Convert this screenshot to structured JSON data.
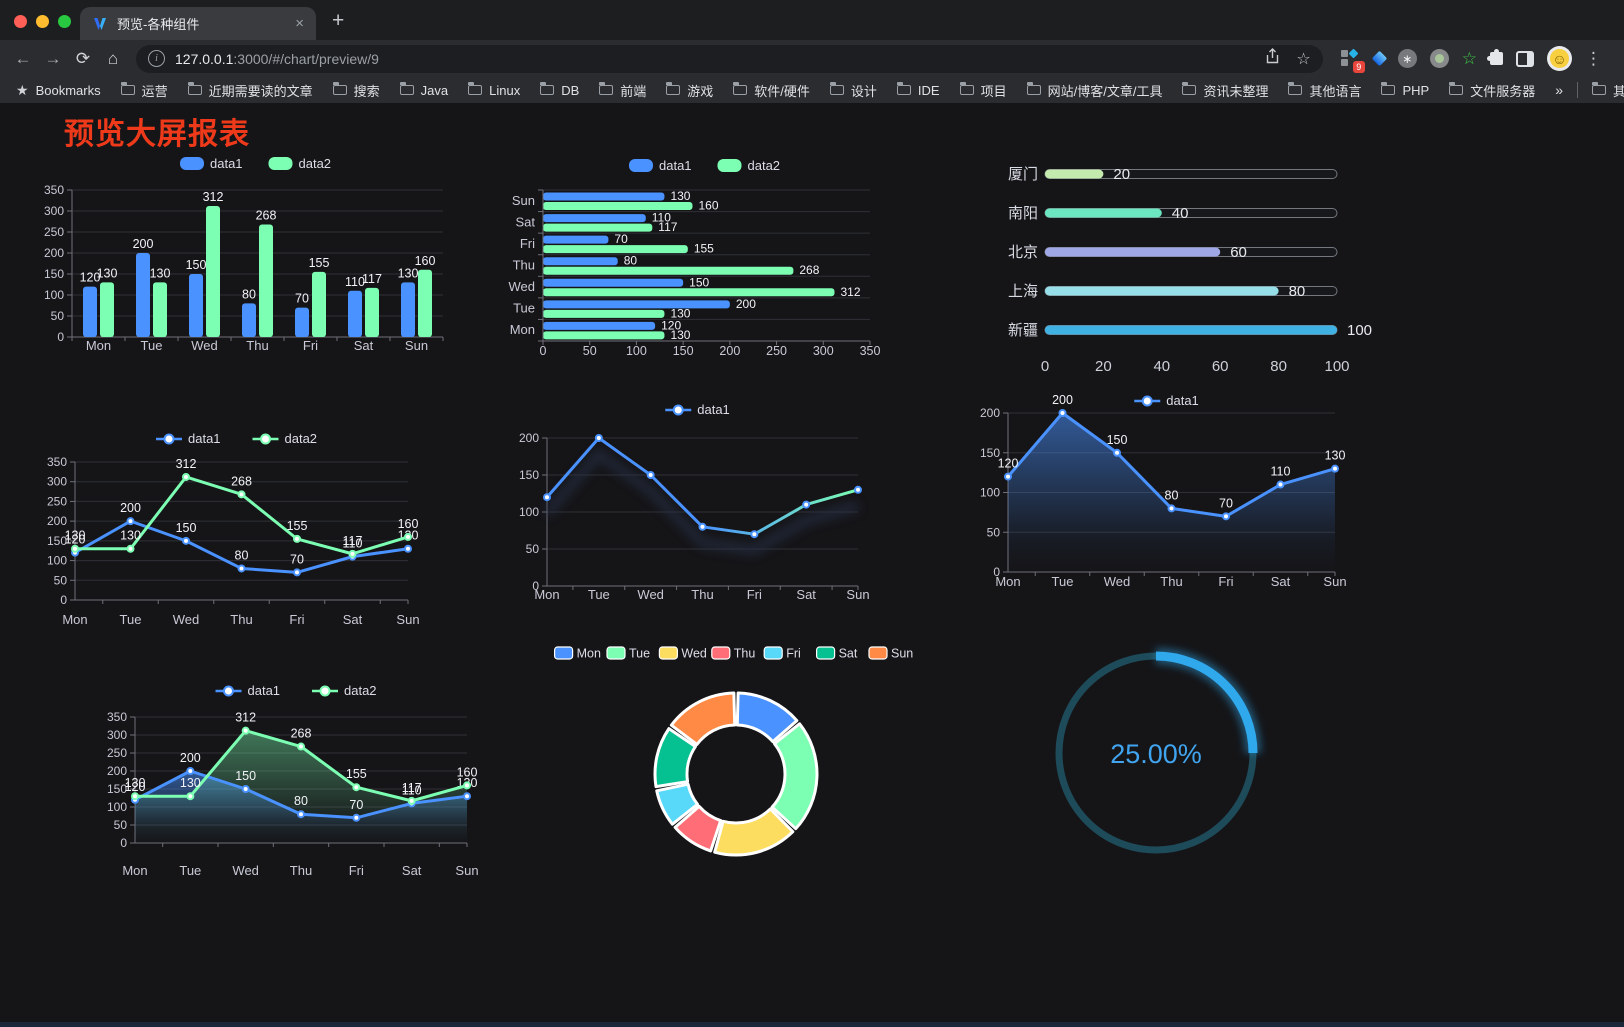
{
  "browser": {
    "tab_title": "预览-各种组件",
    "new_tab_label": "+",
    "close_tab_label": "×",
    "url_host": "127.0.0.1",
    "url_rest": ":3000/#/chart/preview/9",
    "bookmarks_label": "Bookmarks",
    "bookmarks": [
      "运营",
      "近期需要读的文章",
      "搜索",
      "Java",
      "Linux",
      "DB",
      "前端",
      "游戏",
      "软件/硬件",
      "设计",
      "IDE",
      "项目",
      "网站/博客/文章/工具",
      "资讯未整理",
      "其他语言",
      "PHP",
      "文件服务器"
    ],
    "overflow_chevron": "»",
    "other_bookmarks": "其他书签",
    "extension_badge": "9"
  },
  "page": {
    "title": "预览大屏报表",
    "title_color": "#ee3a1a"
  },
  "chart_data": [
    {
      "id": "grouped-bar",
      "type": "bar",
      "categories": [
        "Mon",
        "Tue",
        "Wed",
        "Thu",
        "Fri",
        "Sat",
        "Sun"
      ],
      "series": [
        {
          "name": "data1",
          "color": "#4992ff",
          "values": [
            120,
            200,
            150,
            80,
            70,
            110,
            130
          ]
        },
        {
          "name": "data2",
          "color": "#7cffb2",
          "values": [
            130,
            130,
            312,
            268,
            155,
            117,
            160
          ]
        }
      ],
      "ylim": [
        0,
        350
      ],
      "ytick_step": 50,
      "legend_position": "top",
      "value_labels": true,
      "grid": true
    },
    {
      "id": "grouped-horizontal-bar",
      "type": "bar-horizontal",
      "categories": [
        "Mon",
        "Tue",
        "Wed",
        "Thu",
        "Fri",
        "Sat",
        "Sun"
      ],
      "categories_display_top_to_bottom": [
        "Sun",
        "Sat",
        "Fri",
        "Thu",
        "Wed",
        "Tue",
        "Mon"
      ],
      "series": [
        {
          "name": "data1",
          "color": "#4992ff",
          "values": [
            120,
            200,
            150,
            80,
            70,
            110,
            130
          ]
        },
        {
          "name": "data2",
          "color": "#7cffb2",
          "values": [
            130,
            130,
            312,
            268,
            155,
            117,
            160
          ]
        }
      ],
      "xlim": [
        0,
        350
      ],
      "xtick_step": 50,
      "legend_position": "top",
      "value_labels": true,
      "grid": true
    },
    {
      "id": "city-progress-bars",
      "type": "progress",
      "items": [
        {
          "label": "厦门",
          "value": 20,
          "color": "#c4ebad"
        },
        {
          "label": "南阳",
          "value": 40,
          "color": "#6be6c1"
        },
        {
          "label": "北京",
          "value": 60,
          "color": "#a0a7e6"
        },
        {
          "label": "上海",
          "value": 80,
          "color": "#96dee8"
        },
        {
          "label": "新疆",
          "value": 100,
          "color": "#3fb1e3"
        }
      ],
      "xlim": [
        0,
        100
      ],
      "xticks": [
        0,
        20,
        40,
        60,
        80,
        100
      ]
    },
    {
      "id": "two-series-line",
      "type": "line",
      "categories": [
        "Mon",
        "Tue",
        "Wed",
        "Thu",
        "Fri",
        "Sat",
        "Sun"
      ],
      "series": [
        {
          "name": "data1",
          "color": "#4992ff",
          "values": [
            120,
            200,
            150,
            80,
            70,
            110,
            130
          ]
        },
        {
          "name": "data2",
          "color": "#7cffb2",
          "values": [
            130,
            130,
            312,
            268,
            155,
            117,
            160
          ]
        }
      ],
      "ylim": [
        0,
        350
      ],
      "ytick_step": 50,
      "legend_position": "top",
      "value_labels": true,
      "grid": true
    },
    {
      "id": "gradient-line",
      "type": "line",
      "categories": [
        "Mon",
        "Tue",
        "Wed",
        "Thu",
        "Fri",
        "Sat",
        "Sun"
      ],
      "series": [
        {
          "name": "data1",
          "color": "#4992ff",
          "gradient": [
            "#4992ff",
            "#7cffb2"
          ],
          "values": [
            120,
            200,
            150,
            80,
            70,
            110,
            130
          ]
        }
      ],
      "ylim": [
        0,
        200
      ],
      "ytick_step": 50,
      "legend_position": "top",
      "value_labels": false,
      "shadow": true,
      "grid": true
    },
    {
      "id": "blue-area-line",
      "type": "area",
      "categories": [
        "Mon",
        "Tue",
        "Wed",
        "Thu",
        "Fri",
        "Sat",
        "Sun"
      ],
      "series": [
        {
          "name": "data1",
          "color": "#4992ff",
          "area": true,
          "values": [
            120,
            200,
            150,
            80,
            70,
            110,
            130
          ]
        }
      ],
      "ylim": [
        0,
        200
      ],
      "ytick_step": 50,
      "legend_position": "top",
      "value_labels": true,
      "grid": true
    },
    {
      "id": "two-series-line-area",
      "type": "area",
      "categories": [
        "Mon",
        "Tue",
        "Wed",
        "Thu",
        "Fri",
        "Sat",
        "Sun"
      ],
      "series": [
        {
          "name": "data1",
          "color": "#4992ff",
          "area": true,
          "values": [
            120,
            200,
            150,
            80,
            70,
            110,
            130
          ]
        },
        {
          "name": "data2",
          "color": "#7cffb2",
          "area": true,
          "values": [
            130,
            130,
            312,
            268,
            155,
            117,
            160
          ]
        }
      ],
      "ylim": [
        0,
        350
      ],
      "ytick_step": 50,
      "legend_position": "top",
      "value_labels": true,
      "grid": true
    },
    {
      "id": "week-donut",
      "type": "pie",
      "categories": [
        "Mon",
        "Tue",
        "Wed",
        "Thu",
        "Fri",
        "Sat",
        "Sun"
      ],
      "values": [
        120,
        200,
        150,
        80,
        70,
        110,
        130
      ],
      "colors": [
        "#4992ff",
        "#7cffb2",
        "#fddd60",
        "#ff6e76",
        "#58d9f9",
        "#05c091",
        "#ff8a45"
      ],
      "inner_radius_ratio": 0.6,
      "border_color": "#ffffff",
      "legend_position": "top"
    },
    {
      "id": "percent-gauge",
      "type": "gauge",
      "value": 25,
      "max": 100,
      "label": "25.00%",
      "color": "#2fa8ec",
      "track_color": "#1e4b5a",
      "text_color": "#41a4ef"
    }
  ]
}
